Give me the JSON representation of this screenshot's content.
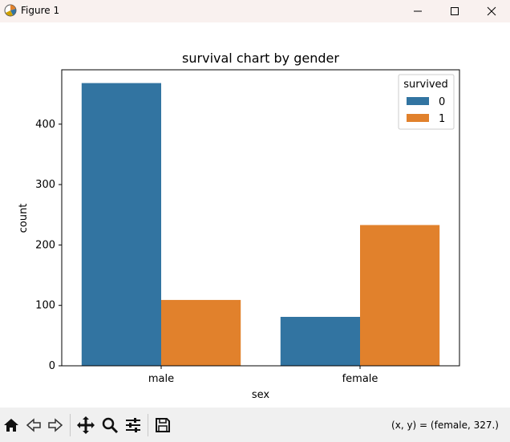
{
  "window": {
    "title": "Figure 1",
    "app_icon": "matplotlib-icon",
    "buttons": [
      "minimize-icon",
      "maximize-icon",
      "close-icon"
    ]
  },
  "toolbar": {
    "buttons": [
      "home-icon",
      "back-icon",
      "forward-icon",
      "pan-icon",
      "zoom-icon",
      "configure-subplots-icon",
      "save-icon"
    ],
    "coords": "(x, y) = (female, 327.)"
  },
  "chart_data": {
    "type": "bar",
    "title": "survival chart by gender",
    "xlabel": "sex",
    "ylabel": "count",
    "categories": [
      "male",
      "female"
    ],
    "ylim": [
      0,
      490
    ],
    "yticks": [
      0,
      100,
      200,
      300,
      400
    ],
    "grid": false,
    "legend": {
      "title": "survived",
      "placement": "top-right"
    },
    "series": [
      {
        "name": "0",
        "values": [
          468,
          81
        ],
        "color": "#3274a1"
      },
      {
        "name": "1",
        "values": [
          109,
          233
        ],
        "color": "#e1812c"
      }
    ]
  }
}
